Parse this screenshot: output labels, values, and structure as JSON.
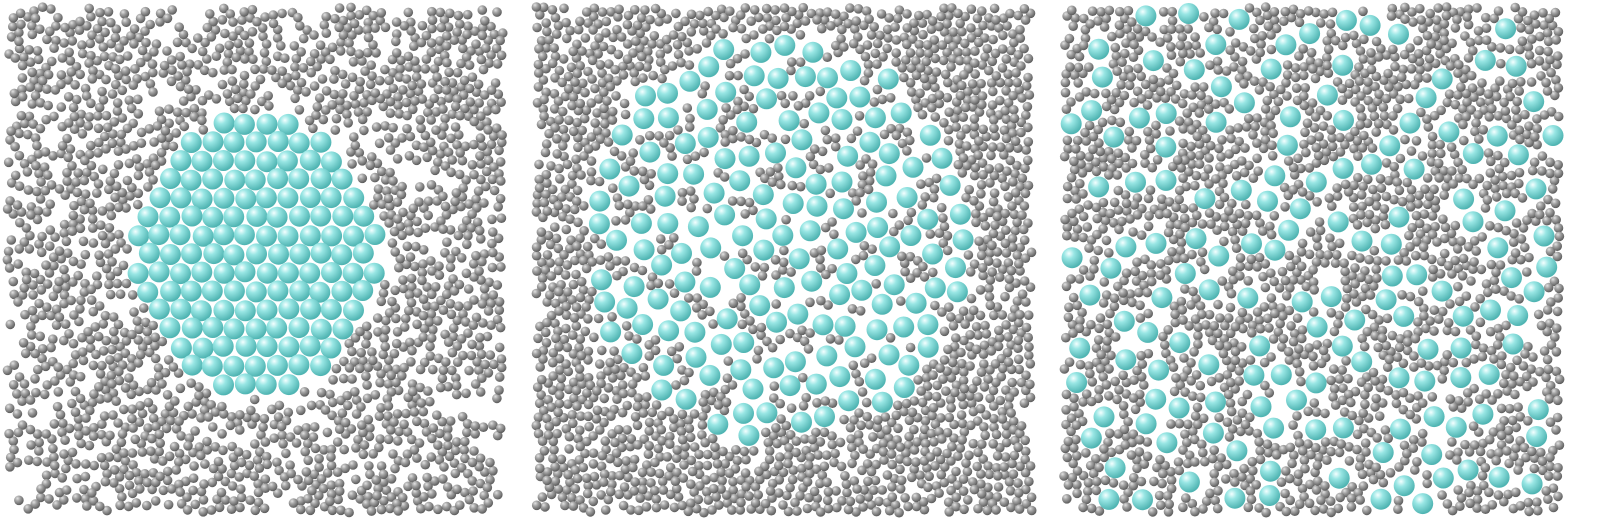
{
  "figure": {
    "panel_count": 3,
    "background_color": "#ffffff",
    "species": [
      {
        "kind": "small-gray-particle",
        "color": "#8c8c8c"
      },
      {
        "kind": "large-cyan-particle",
        "color": "#7fd9d7"
      }
    ],
    "panels": [
      {
        "id": "panel-1",
        "state": "dense-cluster"
      },
      {
        "id": "panel-2",
        "state": "loosening-cluster"
      },
      {
        "id": "panel-3",
        "state": "dispersed"
      }
    ]
  }
}
